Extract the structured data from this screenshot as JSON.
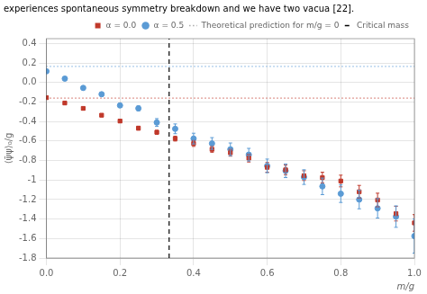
{
  "chart_data": {
    "type": "scatter",
    "title": "experiences spontaneous symmetry breakdown and we have two vacua [22].",
    "xlabel": "m/g",
    "ylabel": "⟨ψ̄ψ⟩₀/g",
    "xlim": [
      0,
      1.0
    ],
    "ylim": [
      -1.8,
      0.45
    ],
    "xticks": [
      {
        "value": 0,
        "label": "0.0"
      },
      0.2,
      0.4,
      0.6,
      0.8,
      {
        "value": 1.0,
        "label": "1.0"
      }
    ],
    "yticks": [
      0.4,
      0.2,
      {
        "value": 0,
        "label": "0.0"
      },
      -0.2,
      -0.4,
      -0.6,
      -0.8,
      -1.0,
      -1.2,
      -1.4,
      -1.6,
      -1.8
    ],
    "grid": true,
    "legend": "upper right",
    "series": [
      {
        "name": "α = 0.0",
        "type": "scatter",
        "marker": "square",
        "color": "#c0392b",
        "x": [
          0.0,
          0.05,
          0.1,
          0.15,
          0.2,
          0.25,
          0.3,
          0.35,
          0.4,
          0.45,
          0.5,
          0.55,
          0.6,
          0.65,
          0.7,
          0.75,
          0.8,
          0.85,
          0.9,
          0.95,
          1.0
        ],
        "values": [
          -0.155,
          -0.21,
          -0.265,
          -0.335,
          -0.395,
          -0.468,
          -0.51,
          -0.575,
          -0.625,
          -0.685,
          -0.72,
          -0.775,
          -0.87,
          -0.895,
          -0.955,
          -0.975,
          -1.01,
          -1.12,
          -1.205,
          -1.345,
          -1.44
        ],
        "yerr": [
          0.01,
          0.012,
          0.012,
          0.015,
          0.015,
          0.02,
          0.02,
          0.025,
          0.03,
          0.03,
          0.035,
          0.04,
          0.05,
          0.05,
          0.05,
          0.055,
          0.06,
          0.065,
          0.07,
          0.075,
          0.085
        ]
      },
      {
        "name": "α = 0.5",
        "type": "scatter",
        "marker": "circle",
        "color": "#5b9bd5",
        "x": [
          0.0,
          0.05,
          0.1,
          0.15,
          0.2,
          0.25,
          0.3,
          0.35,
          0.4,
          0.45,
          0.5,
          0.55,
          0.6,
          0.65,
          0.7,
          0.75,
          0.8,
          0.85,
          0.9,
          0.95,
          1.0
        ],
        "values": [
          0.115,
          0.04,
          -0.055,
          -0.12,
          -0.235,
          -0.265,
          -0.41,
          -0.475,
          -0.575,
          -0.625,
          -0.685,
          -0.74,
          -0.855,
          -0.905,
          -0.97,
          -1.065,
          -1.14,
          -1.2,
          -1.29,
          -1.375,
          -1.575
        ],
        "yerr": [
          0.015,
          0.015,
          0.02,
          0.02,
          0.02,
          0.025,
          0.04,
          0.05,
          0.055,
          0.06,
          0.065,
          0.065,
          0.07,
          0.07,
          0.075,
          0.085,
          0.09,
          0.095,
          0.1,
          0.11,
          0.175
        ]
      },
      {
        "name": "Theoretical prediction for m/g = 0",
        "type": "hline",
        "line_style": "dotted",
        "color": "gray",
        "values": [
          -0.159,
          0.165
        ],
        "colors": [
          "#c0392b",
          "#5b9bd5"
        ]
      },
      {
        "name": "Critical mass",
        "type": "vline",
        "line_style": "dashed",
        "color": "black",
        "x": [
          0.3335
        ]
      }
    ]
  }
}
